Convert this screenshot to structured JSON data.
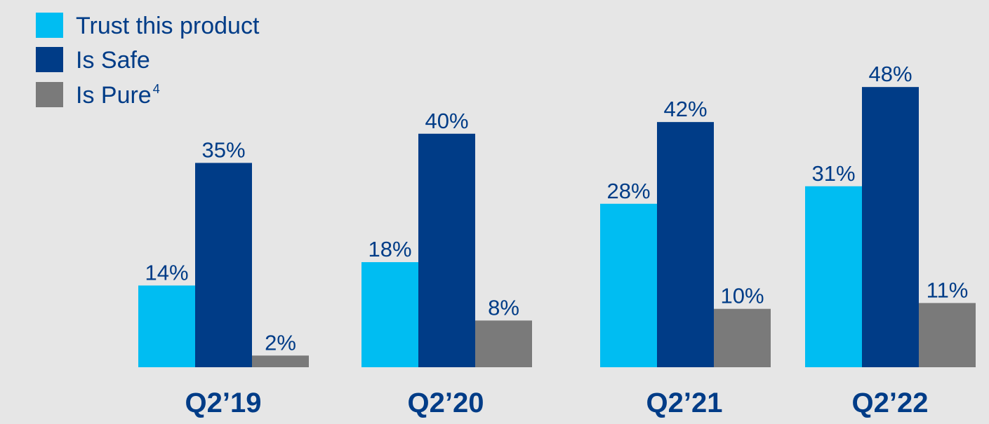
{
  "chart_data": {
    "type": "bar",
    "title": "",
    "xlabel": "",
    "ylabel": "",
    "ylim": [
      0,
      50
    ],
    "grid": false,
    "legend_position": "top-left",
    "categories": [
      "Q2’19",
      "Q2’20",
      "Q2’21",
      "Q2’22"
    ],
    "series": [
      {
        "name": "Trust this product",
        "color": "#00bdf2",
        "values": [
          14,
          18,
          28,
          31
        ],
        "labels": [
          "14%",
          "18%",
          "28%",
          "31%"
        ]
      },
      {
        "name": "Is Safe",
        "color": "#003c87",
        "values": [
          35,
          40,
          42,
          48
        ],
        "labels": [
          "35%",
          "40%",
          "42%",
          "48%"
        ]
      },
      {
        "name": "Is Pure",
        "superscript": "4",
        "color": "#7a7a7a",
        "values": [
          2,
          8,
          10,
          11
        ],
        "labels": [
          "2%",
          "8%",
          "10%",
          "11%"
        ]
      }
    ],
    "label_color": "#003c87"
  }
}
